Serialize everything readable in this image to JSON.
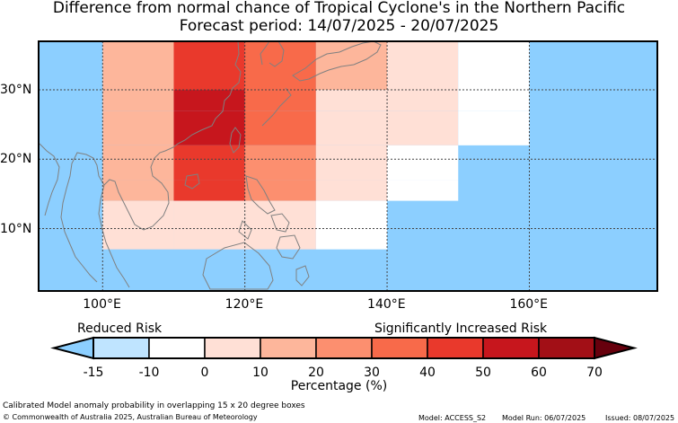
{
  "header": {
    "title": "Difference from normal chance of Tropical Cyclone's in the Northern Pacific",
    "subtitle": "Forecast period: 14/07/2025 - 20/07/2025"
  },
  "map": {
    "lon_range": [
      91,
      178
    ],
    "lat_range": [
      1,
      37
    ],
    "gridlines": "dashed",
    "lon_ticks": [
      {
        "value": 100,
        "label": "100°E"
      },
      {
        "value": 120,
        "label": "120°E"
      },
      {
        "value": 140,
        "label": "140°E"
      },
      {
        "value": 160,
        "label": "160°E"
      }
    ],
    "lat_ticks": [
      {
        "value": 10,
        "label": "10°N"
      },
      {
        "value": 20,
        "label": "20°N"
      },
      {
        "value": 30,
        "label": "30°N"
      }
    ],
    "background_color": "#8ccfff",
    "coastline_color": "#808080"
  },
  "chart_data": {
    "type": "heatmap",
    "description_units": "anomaly percentage per 10x15 degree cell",
    "cells": [
      {
        "lon": [
          100,
          110
        ],
        "lat": [
          30,
          37
        ],
        "value": 15
      },
      {
        "lon": [
          110,
          120
        ],
        "lat": [
          30,
          37
        ],
        "value": 45
      },
      {
        "lon": [
          120,
          130
        ],
        "lat": [
          30,
          37
        ],
        "value": 35
      },
      {
        "lon": [
          130,
          140
        ],
        "lat": [
          30,
          37
        ],
        "value": 15
      },
      {
        "lon": [
          140,
          150
        ],
        "lat": [
          30,
          37
        ],
        "value": 0
      },
      {
        "lon": [
          150,
          160
        ],
        "lat": [
          30,
          37
        ],
        "value": -10
      },
      {
        "lon": [
          100,
          110
        ],
        "lat": [
          27,
          30
        ],
        "value": 15
      },
      {
        "lon": [
          110,
          120
        ],
        "lat": [
          27,
          30
        ],
        "value": 55
      },
      {
        "lon": [
          120,
          130
        ],
        "lat": [
          27,
          30
        ],
        "value": 35
      },
      {
        "lon": [
          130,
          140
        ],
        "lat": [
          27,
          30
        ],
        "value": 5
      },
      {
        "lon": [
          140,
          150
        ],
        "lat": [
          27,
          30
        ],
        "value": 0
      },
      {
        "lon": [
          150,
          160
        ],
        "lat": [
          27,
          30
        ],
        "value": -10
      },
      {
        "lon": [
          100,
          110
        ],
        "lat": [
          22,
          27
        ],
        "value": 15
      },
      {
        "lon": [
          110,
          120
        ],
        "lat": [
          22,
          27
        ],
        "value": 55
      },
      {
        "lon": [
          120,
          130
        ],
        "lat": [
          22,
          27
        ],
        "value": 35
      },
      {
        "lon": [
          130,
          140
        ],
        "lat": [
          22,
          27
        ],
        "value": 5
      },
      {
        "lon": [
          140,
          150
        ],
        "lat": [
          22,
          27
        ],
        "value": 0
      },
      {
        "lon": [
          150,
          160
        ],
        "lat": [
          22,
          27
        ],
        "value": -10
      },
      {
        "lon": [
          100,
          110
        ],
        "lat": [
          17,
          22
        ],
        "value": 15
      },
      {
        "lon": [
          110,
          120
        ],
        "lat": [
          17,
          22
        ],
        "value": 45
      },
      {
        "lon": [
          120,
          130
        ],
        "lat": [
          17,
          22
        ],
        "value": 25
      },
      {
        "lon": [
          130,
          140
        ],
        "lat": [
          17,
          22
        ],
        "value": 0
      },
      {
        "lon": [
          140,
          150
        ],
        "lat": [
          17,
          22
        ],
        "value": -10
      },
      {
        "lon": [
          100,
          110
        ],
        "lat": [
          14,
          17
        ],
        "value": 15
      },
      {
        "lon": [
          110,
          120
        ],
        "lat": [
          14,
          17
        ],
        "value": 45
      },
      {
        "lon": [
          120,
          130
        ],
        "lat": [
          14,
          17
        ],
        "value": 25
      },
      {
        "lon": [
          130,
          140
        ],
        "lat": [
          14,
          17
        ],
        "value": 0
      },
      {
        "lon": [
          140,
          150
        ],
        "lat": [
          14,
          17
        ],
        "value": -10
      },
      {
        "lon": [
          100,
          110
        ],
        "lat": [
          7,
          14
        ],
        "value": 0
      },
      {
        "lon": [
          110,
          120
        ],
        "lat": [
          7,
          14
        ],
        "value": 5
      },
      {
        "lon": [
          120,
          130
        ],
        "lat": [
          7,
          14
        ],
        "value": 5
      },
      {
        "lon": [
          130,
          140
        ],
        "lat": [
          7,
          14
        ],
        "value": -10
      }
    ],
    "colorbar": {
      "levels": [
        -15,
        -10,
        0,
        10,
        20,
        30,
        40,
        50,
        60,
        70
      ],
      "colors": [
        "#bfe4ff",
        "#ffffff",
        "#ffe0d6",
        "#fdb69b",
        "#fc8f6f",
        "#f86a4a",
        "#e9392c",
        "#c7161d",
        "#a20f16"
      ],
      "under_color": "#8ccfff",
      "over_color": "#67000d",
      "label": "Percentage (%)",
      "reduced_label": "Reduced Risk",
      "increased_label": "Significantly Increased Risk"
    }
  },
  "footer": {
    "method": "Calibrated Model anomaly probability in overlapping 15 x 20 degree boxes",
    "copyright": "© Commonwealth of Australia 2025, Australian Bureau of Meteorology",
    "model": "Model: ACCESS_S2",
    "model_run": "Model Run: 06/07/2025",
    "issued": "Issued: 08/07/2025"
  }
}
